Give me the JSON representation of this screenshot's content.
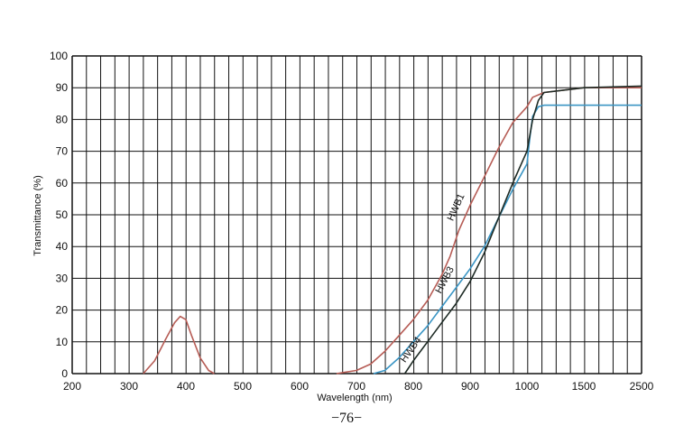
{
  "chart_data": {
    "type": "line",
    "title": "",
    "xlabel": "Wavelength (nm)",
    "ylabel": "Transmittance (%)",
    "ylim": [
      0,
      100
    ],
    "y_ticks": [
      "0",
      "10",
      "20",
      "30",
      "40",
      "50",
      "60",
      "70",
      "80",
      "90",
      "100"
    ],
    "x_ticks": [
      "200",
      "300",
      "400",
      "500",
      "600",
      "700",
      "800",
      "900",
      "1000",
      "1500",
      "2500"
    ],
    "x_scale": "nonlinear",
    "grid": true,
    "legend": "inline labels on curves",
    "series": [
      {
        "name": "HWB1",
        "color": "#b65c55",
        "segments": [
          [
            [
              325,
              0
            ],
            [
              345,
              4
            ],
            [
              365,
              11
            ],
            [
              380,
              16
            ],
            [
              390,
              18
            ],
            [
              400,
              17
            ],
            [
              410,
              12
            ],
            [
              425,
              5
            ],
            [
              440,
              1
            ],
            [
              450,
              0
            ]
          ],
          [
            [
              665,
              0
            ],
            [
              700,
              1
            ],
            [
              725,
              3
            ],
            [
              750,
              7
            ],
            [
              775,
              12
            ],
            [
              800,
              17
            ],
            [
              825,
              23
            ],
            [
              850,
              31
            ],
            [
              865,
              37
            ],
            [
              880,
              45
            ],
            [
              900,
              53
            ],
            [
              925,
              62
            ],
            [
              950,
              71
            ],
            [
              975,
              79
            ],
            [
              1000,
              84
            ],
            [
              1050,
              87
            ],
            [
              1150,
              88.5
            ],
            [
              1500,
              90
            ],
            [
              2000,
              90
            ],
            [
              2500,
              90
            ]
          ]
        ]
      },
      {
        "name": "HWB3",
        "color": "#3a95c4",
        "segments": [
          [
            [
              730,
              0
            ],
            [
              750,
              1
            ],
            [
              775,
              5
            ],
            [
              800,
              10
            ],
            [
              825,
              15
            ],
            [
              850,
              21
            ],
            [
              875,
              27
            ],
            [
              900,
              33
            ],
            [
              925,
              40
            ],
            [
              950,
              49
            ],
            [
              975,
              58
            ],
            [
              1000,
              66
            ],
            [
              1025,
              74
            ],
            [
              1050,
              81
            ],
            [
              1100,
              84
            ],
            [
              1150,
              84.5
            ],
            [
              1500,
              84.5
            ],
            [
              2500,
              84.5
            ]
          ]
        ]
      },
      {
        "name": "HWB4",
        "color": "#1d2a24",
        "segments": [
          [
            [
              785,
              0
            ],
            [
              800,
              4
            ],
            [
              825,
              10
            ],
            [
              850,
              16
            ],
            [
              875,
              22
            ],
            [
              900,
              29
            ],
            [
              925,
              38
            ],
            [
              950,
              49
            ],
            [
              975,
              60
            ],
            [
              1000,
              70
            ],
            [
              1050,
              80
            ],
            [
              1100,
              86
            ],
            [
              1150,
              88.5
            ],
            [
              1500,
              90
            ],
            [
              2500,
              90.5
            ]
          ]
        ]
      }
    ],
    "curve_labels": [
      "HWB1",
      "HWB3",
      "HWB4"
    ]
  },
  "page_number": "−76−"
}
